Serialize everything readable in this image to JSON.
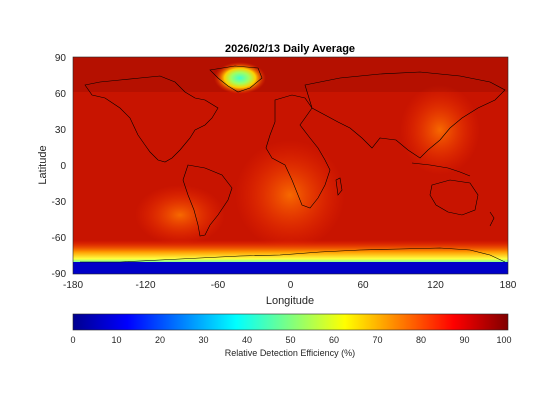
{
  "title": "2026/02/13 Daily Average",
  "map": {
    "xlabel": "Longitude",
    "ylabel": "Latitude",
    "xticks": [
      "-180",
      "-120",
      "-60",
      "0",
      "60",
      "120",
      "180"
    ],
    "yticks": [
      "90",
      "60",
      "30",
      "0",
      "-30",
      "-60",
      "-90"
    ],
    "xlim": [
      -180,
      180
    ],
    "ylim": [
      -90,
      90
    ],
    "projection": "equirectangular"
  },
  "colorbar": {
    "label": "Relative Detection Efficiency (%)",
    "ticks": [
      "0",
      "10",
      "20",
      "30",
      "40",
      "50",
      "60",
      "70",
      "80",
      "90",
      "100"
    ],
    "range": [
      0,
      100
    ],
    "colormap": "jet"
  },
  "colors": {
    "background_field": "#c81400",
    "max": "#800000",
    "min": "#00008f",
    "coast": "#000000"
  }
}
